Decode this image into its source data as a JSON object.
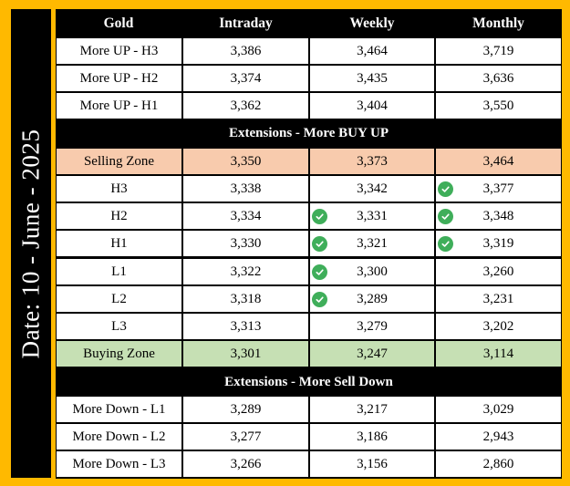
{
  "date_label": "Date: 10 - June - 2025",
  "header": {
    "col0": "Gold",
    "col1": "Intraday",
    "col2": "Weekly",
    "col3": "Monthly"
  },
  "bands": {
    "buy_up": "Extensions - More BUY UP",
    "sell_down": "Extensions - More Sell Down"
  },
  "colors": {
    "frame": "#FFB900",
    "selling_zone": "#F8CBAD",
    "buying_zone": "#C6E0B4",
    "check": "#3FAE5A"
  },
  "rows": [
    {
      "label": "More UP - H3",
      "intraday": "3,386",
      "weekly": "3,464",
      "monthly": "3,719",
      "weekly_check": false,
      "monthly_check": false
    },
    {
      "label": "More UP - H2",
      "intraday": "3,374",
      "weekly": "3,435",
      "monthly": "3,636",
      "weekly_check": false,
      "monthly_check": false
    },
    {
      "label": "More UP - H1",
      "intraday": "3,362",
      "weekly": "3,404",
      "monthly": "3,550",
      "weekly_check": false,
      "monthly_check": false
    },
    {
      "label": "Selling Zone",
      "intraday": "3,350",
      "weekly": "3,373",
      "monthly": "3,464",
      "weekly_check": false,
      "monthly_check": false
    },
    {
      "label": "H3",
      "intraday": "3,338",
      "weekly": "3,342",
      "monthly": "3,377",
      "weekly_check": false,
      "monthly_check": true
    },
    {
      "label": "H2",
      "intraday": "3,334",
      "weekly": "3,331",
      "monthly": "3,348",
      "weekly_check": true,
      "monthly_check": true
    },
    {
      "label": "H1",
      "intraday": "3,330",
      "weekly": "3,321",
      "monthly": "3,319",
      "weekly_check": true,
      "monthly_check": true
    },
    {
      "label": "L1",
      "intraday": "3,322",
      "weekly": "3,300",
      "monthly": "3,260",
      "weekly_check": true,
      "monthly_check": false
    },
    {
      "label": "L2",
      "intraday": "3,318",
      "weekly": "3,289",
      "monthly": "3,231",
      "weekly_check": true,
      "monthly_check": false
    },
    {
      "label": "L3",
      "intraday": "3,313",
      "weekly": "3,279",
      "monthly": "3,202",
      "weekly_check": false,
      "monthly_check": false
    },
    {
      "label": "Buying Zone",
      "intraday": "3,301",
      "weekly": "3,247",
      "monthly": "3,114",
      "weekly_check": false,
      "monthly_check": false
    },
    {
      "label": "More Down - L1",
      "intraday": "3,289",
      "weekly": "3,217",
      "monthly": "3,029",
      "weekly_check": false,
      "monthly_check": false
    },
    {
      "label": "More Down - L2",
      "intraday": "3,277",
      "weekly": "3,186",
      "monthly": "2,943",
      "weekly_check": false,
      "monthly_check": false
    },
    {
      "label": "More Down - L3",
      "intraday": "3,266",
      "weekly": "3,156",
      "monthly": "2,860",
      "weekly_check": false,
      "monthly_check": false
    }
  ]
}
